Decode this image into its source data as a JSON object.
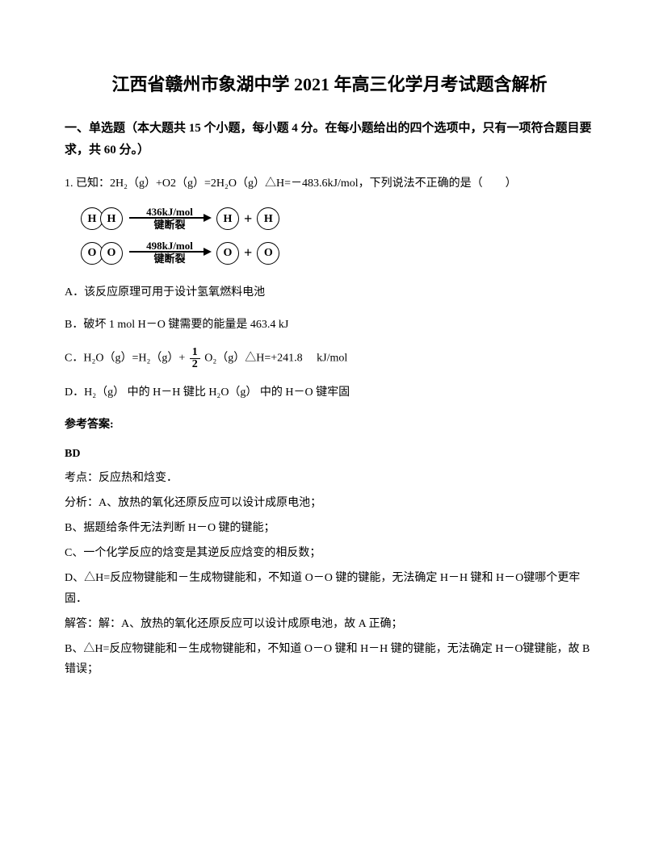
{
  "title": "江西省赣州市象湖中学 2021 年高三化学月考试题含解析",
  "section_header": "一、单选题（本大题共 15 个小题，每小题 4 分。在每小题给出的四个选项中，只有一项符合题目要求，共 60 分。）",
  "question_number": "1.",
  "question_text": "已知：2H₂（g）+O2（g）=2H₂O（g）△H=－483.6kJ/mol，下列说法不正确的是（　　）",
  "diagram": {
    "row1": {
      "left_atoms": [
        "H",
        "H"
      ],
      "energy": "436kJ/mol",
      "label": "键断裂",
      "right_atoms": [
        "H",
        "H"
      ]
    },
    "row2": {
      "left_atoms": [
        "O",
        "O"
      ],
      "energy": "498kJ/mol",
      "label": "键断裂",
      "right_atoms": [
        "O",
        "O"
      ]
    }
  },
  "options": {
    "A": "A．该反应原理可用于设计氢氧燃料电池",
    "B": "B．破坏 1 mol H－O 键需要的能量是 463.4 kJ",
    "C_prefix": "C．H₂O（g）=H₂（g）+ ",
    "C_suffix": " O₂（g）△H=+241.8　 kJ/mol",
    "D": "D．H₂（g） 中的 H－H 键比 H₂O（g） 中的 H－O 键牢固"
  },
  "answer_label": "参考答案:",
  "answer_value": "BD",
  "analysis": {
    "line1": "考点：反应热和焓变．",
    "line2": "分析：A、放热的氧化还原反应可以设计成原电池；",
    "line3": "B、据题给条件无法判断 H－O 键的键能；",
    "line4": "C、一个化学反应的焓变是其逆反应焓变的相反数；",
    "line5": "D、△H=反应物键能和－生成物键能和，不知道 O－O 键的键能，无法确定 H－H 键和 H－O键哪个更牢固．",
    "line6": "解答：解：A、放热的氧化还原反应可以设计成原电池，故 A 正确；",
    "line7": "B、△H=反应物键能和－生成物键能和，不知道 O－O 键和 H－H 键的键能，无法确定 H－O键键能，故 B 错误；"
  }
}
